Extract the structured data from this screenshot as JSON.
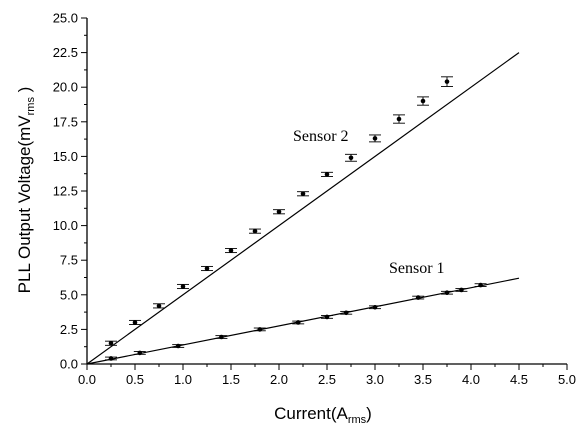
{
  "chart_data": {
    "type": "scatter",
    "xlabel": "Current(A",
    "xlabel_sub": "rms",
    "xlabel_end": ")",
    "ylabel": "PLL Output Voltage(mV",
    "ylabel_sub": "rms",
    "ylabel_end": " )",
    "xlim": [
      0,
      5
    ],
    "ylim": [
      0,
      25
    ],
    "x_ticks": [
      "0.0",
      "0.5",
      "1.0",
      "1.5",
      "2.0",
      "2.5",
      "3.0",
      "3.5",
      "4.0",
      "4.5",
      "5.0"
    ],
    "y_ticks": [
      "0.0",
      "2.5",
      "5.0",
      "7.5",
      "10.0",
      "12.5",
      "15.0",
      "17.5",
      "20.0",
      "22.5",
      "25.0"
    ],
    "series": [
      {
        "name": "Sensor 2",
        "fit": {
          "x0": 0,
          "y0": 0,
          "x1": 4.5,
          "y1": 22.5
        },
        "x": [
          0.25,
          0.5,
          0.75,
          1.0,
          1.25,
          1.5,
          1.75,
          2.0,
          2.25,
          2.5,
          2.75,
          3.0,
          3.25,
          3.5,
          3.75
        ],
        "y": [
          1.5,
          3.0,
          4.2,
          5.6,
          6.9,
          8.2,
          9.6,
          11.0,
          12.3,
          13.7,
          14.9,
          16.3,
          17.7,
          19.0,
          20.4
        ],
        "err": [
          0.15,
          0.15,
          0.15,
          0.15,
          0.15,
          0.15,
          0.15,
          0.15,
          0.15,
          0.15,
          0.25,
          0.25,
          0.3,
          0.3,
          0.35
        ]
      },
      {
        "name": "Sensor 1",
        "fit": {
          "x0": 0,
          "y0": 0,
          "x1": 4.5,
          "y1": 6.2
        },
        "x": [
          0.25,
          0.55,
          0.95,
          1.4,
          1.8,
          2.2,
          2.5,
          2.7,
          3.0,
          3.45,
          3.75,
          3.9,
          4.1
        ],
        "y": [
          0.4,
          0.8,
          1.3,
          1.95,
          2.5,
          3.0,
          3.4,
          3.7,
          4.1,
          4.8,
          5.15,
          5.35,
          5.7
        ],
        "err": [
          0.1,
          0.1,
          0.1,
          0.1,
          0.1,
          0.1,
          0.1,
          0.1,
          0.1,
          0.1,
          0.1,
          0.1,
          0.1
        ]
      }
    ]
  }
}
